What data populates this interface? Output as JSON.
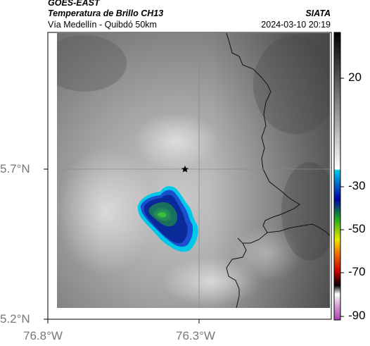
{
  "header": {
    "satellite": "GOES-EAST",
    "product": "Temperatura de Brillo CH13",
    "region": "Vía Medellín - Quibdó 50km",
    "brand": "SIATA",
    "datetime": "2024-03-10 20:19"
  },
  "axes": {
    "lat_labels": [
      "5.7°N",
      "5.2°N"
    ],
    "lon_labels": [
      "76.8°W",
      "76.3°W"
    ]
  },
  "colorbar": {
    "tick_labels": [
      "20",
      "-30",
      "-50",
      "-70",
      "-90"
    ],
    "colors": {
      "white": "#e8e8e8",
      "cyan": "#00c8e8",
      "blue": "#0000a0",
      "green": "#22aa22",
      "yellow": "#e8e800",
      "orange": "#e87000",
      "red": "#cc0000",
      "black": "#000000",
      "magenta": "#b040b0"
    }
  },
  "map": {
    "marker_icon": "star-icon"
  }
}
